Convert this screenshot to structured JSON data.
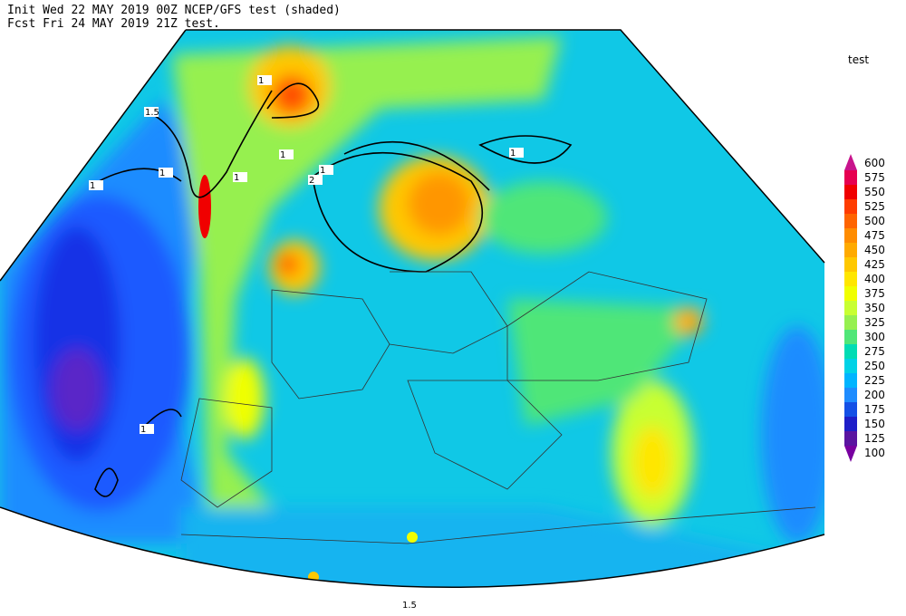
{
  "header": {
    "line1": "Init  Wed 22 MAY 2019 00Z  NCEP/GFS test (shaded)",
    "line2": "Fcst Fri 24 MAY 2019 21Z   test."
  },
  "legend": {
    "title": "test",
    "levels": [
      600,
      575,
      550,
      525,
      500,
      475,
      450,
      425,
      400,
      375,
      350,
      325,
      300,
      275,
      250,
      225,
      200,
      175,
      150,
      125,
      100
    ],
    "colors": [
      "#c8148c",
      "#e60050",
      "#f00000",
      "#ff3c00",
      "#ff6400",
      "#ff8c00",
      "#ffaa00",
      "#ffc800",
      "#ffe600",
      "#f0ff00",
      "#c8ff32",
      "#96f050",
      "#50e678",
      "#00dcb4",
      "#00d2e6",
      "#00b4ff",
      "#1e8cff",
      "#1450e6",
      "#1e1ec8",
      "#5a14a0",
      "#7800a0"
    ]
  },
  "contours": {
    "labels": [
      "1.5",
      "1",
      "1",
      "1",
      "1",
      "1",
      "1",
      "2",
      "1",
      "1",
      "1.5"
    ]
  }
}
